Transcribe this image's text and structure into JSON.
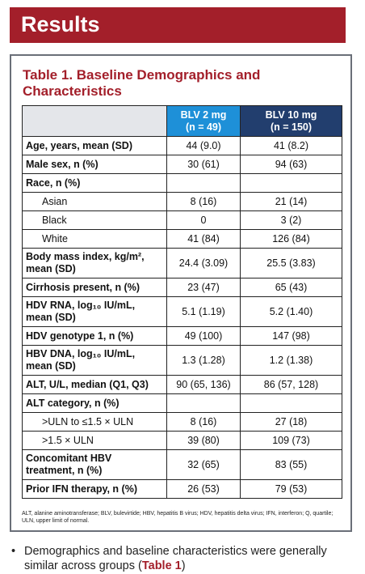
{
  "header": {
    "title": "Results"
  },
  "table": {
    "title": "Table 1. Baseline Demographics and Characteristics",
    "columns": [
      [
        "BLV 2 mg",
        "(n = 49)"
      ],
      [
        "BLV 10 mg",
        "(n = 150)"
      ]
    ],
    "rows": [
      [
        "Age, years, mean (SD)",
        "44 (9.0)",
        "41 (8.2)"
      ],
      [
        "Male sex, n (%)",
        "30 (61)",
        "94 (63)"
      ],
      [
        "Race, n (%)"
      ],
      [
        "Asian",
        "8 (16)",
        "21 (14)"
      ],
      [
        "Black",
        "0",
        "3 (2)"
      ],
      [
        "White",
        "41 (84)",
        "126 (84)"
      ],
      [
        "Body mass index, kg/m², mean (SD)",
        "24.4 (3.09)",
        "25.5 (3.83)"
      ],
      [
        "Cirrhosis present, n (%)",
        "23 (47)",
        "65 (43)"
      ],
      [
        "HDV RNA, log₁₀ IU/mL, mean (SD)",
        "5.1 (1.19)",
        "5.2 (1.40)"
      ],
      [
        "HDV genotype 1, n (%)",
        "49 (100)",
        "147 (98)"
      ],
      [
        "HBV DNA, log₁₀ IU/mL, mean (SD)",
        "1.3 (1.28)",
        "1.2 (1.38)"
      ],
      [
        "ALT, U/L, median (Q1, Q3)",
        "90 (65, 136)",
        "86 (57, 128)"
      ],
      [
        "ALT category, n (%)"
      ],
      [
        ">ULN to ≤1.5 × ULN",
        "8 (16)",
        "27 (18)"
      ],
      [
        ">1.5 × ULN",
        "39 (80)",
        "109 (73)"
      ],
      [
        "Concomitant HBV treatment, n (%)",
        "32 (65)",
        "83 (55)"
      ],
      [
        "Prior IFN therapy, n (%)",
        "26 (53)",
        "79 (53)"
      ]
    ],
    "footnote": "ALT, alanine aminotransferase; BLV, bulevirtide; HBV, hepatitis B virus; HDV, hepatitis delta virus; IFN, interferon; Q, quartile; ULN, upper limit of normal."
  },
  "bullet": [
    "Demographics and baseline characteristics were generally similar across groups (",
    "Table 1",
    ")"
  ]
}
